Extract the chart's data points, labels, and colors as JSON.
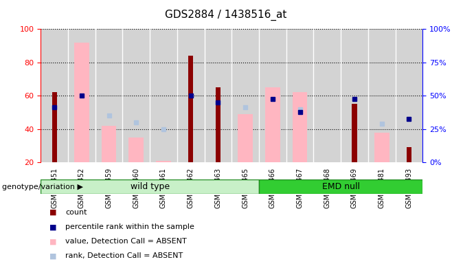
{
  "title": "GDS2884 / 1438516_at",
  "samples": [
    "GSM147451",
    "GSM147452",
    "GSM147459",
    "GSM147460",
    "GSM147461",
    "GSM147462",
    "GSM147463",
    "GSM147465",
    "GSM147466",
    "GSM147467",
    "GSM147468",
    "GSM147469",
    "GSM147481",
    "GSM147493"
  ],
  "count": [
    62,
    null,
    null,
    null,
    null,
    84,
    65,
    null,
    null,
    null,
    null,
    55,
    null,
    29
  ],
  "percentile_rank": [
    53,
    60,
    null,
    null,
    null,
    60,
    56,
    null,
    58,
    50,
    null,
    58,
    null,
    46
  ],
  "value_absent": [
    null,
    92,
    42,
    35,
    21,
    null,
    null,
    49,
    65,
    62,
    null,
    null,
    38,
    null
  ],
  "rank_absent": [
    null,
    null,
    48,
    44,
    40,
    null,
    null,
    53,
    null,
    52,
    null,
    null,
    43,
    null
  ],
  "wild_type_indices": [
    0,
    1,
    2,
    3,
    4,
    5,
    6,
    7
  ],
  "emd_null_indices": [
    8,
    9,
    10,
    11,
    12,
    13
  ],
  "ylim": [
    20,
    100
  ],
  "yticks": [
    20,
    40,
    60,
    80,
    100
  ],
  "count_color": "#8B0000",
  "percentile_color": "#00008B",
  "value_absent_color": "#FFB6C1",
  "rank_absent_color": "#B0C4DE",
  "wt_bg_light": "#C8F0C8",
  "wt_bg_dark": "#50C850",
  "emd_bg": "#32CD32",
  "col_bg": "#D3D3D3",
  "plot_bg": "#FFFFFF"
}
